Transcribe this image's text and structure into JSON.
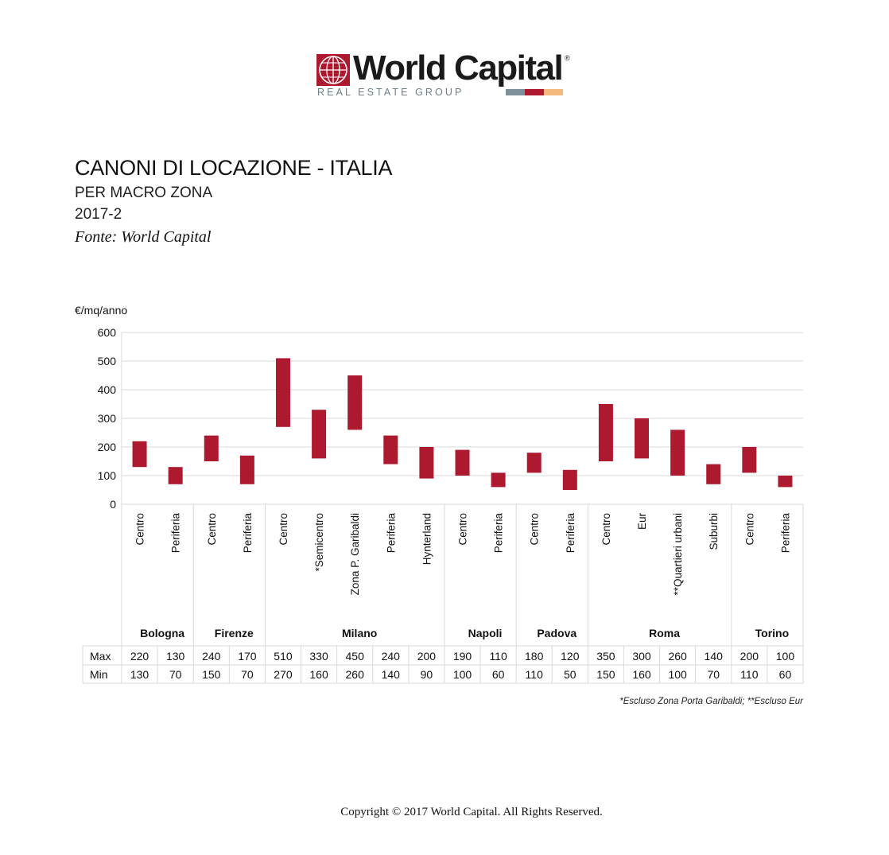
{
  "logo": {
    "name": "World Capital",
    "tagline": "REAL ESTATE GROUP",
    "registered": "®",
    "bar_colors": [
      "#7e9198",
      "#ad1a2f",
      "#f6b97d"
    ]
  },
  "header": {
    "title": "CANONI DI LOCAZIONE - ITALIA",
    "subtitle": "PER MACRO ZONA",
    "period": "2017-2",
    "source": "Fonte: World Capital"
  },
  "chart_data": {
    "type": "bar",
    "style": "floating range (min-max)",
    "ylabel": "€/mq/anno",
    "ylim": [
      0,
      600
    ],
    "yticks": [
      0,
      100,
      200,
      300,
      400,
      500,
      600
    ],
    "grid": true,
    "bar_color": "#ad1a2f",
    "groups": [
      {
        "city": "Bologna",
        "zones": [
          "Centro",
          "Periferia"
        ]
      },
      {
        "city": "Firenze",
        "zones": [
          "Centro",
          "Periferia"
        ]
      },
      {
        "city": "Milano",
        "zones": [
          "Centro",
          "*Semicentro",
          "Zona P. Garibaldi",
          "Periferia",
          "Hynterland"
        ]
      },
      {
        "city": "Napoli",
        "zones": [
          "Centro",
          "Periferia"
        ]
      },
      {
        "city": "Padova",
        "zones": [
          "Centro",
          "Periferia"
        ]
      },
      {
        "city": "Roma",
        "zones": [
          "Centro",
          "Eur",
          "**Quartieri urbani",
          "Suburbi"
        ]
      },
      {
        "city": "Torino",
        "zones": [
          "Centro",
          "Periferia"
        ]
      }
    ],
    "categories": [
      "Centro",
      "Periferia",
      "Centro",
      "Periferia",
      "Centro",
      "*Semicentro",
      "Zona P. Garibaldi",
      "Periferia",
      "Hynterland",
      "Centro",
      "Periferia",
      "Centro",
      "Periferia",
      "Centro",
      "Eur",
      "**Quartieri urbani",
      "Suburbi",
      "Centro",
      "Periferia"
    ],
    "series": [
      {
        "name": "Max",
        "values": [
          220,
          130,
          240,
          170,
          510,
          330,
          450,
          240,
          200,
          190,
          110,
          180,
          120,
          350,
          300,
          260,
          140,
          200,
          100
        ]
      },
      {
        "name": "Min",
        "values": [
          130,
          70,
          150,
          70,
          270,
          160,
          260,
          140,
          90,
          100,
          60,
          110,
          50,
          150,
          160,
          100,
          70,
          110,
          60
        ]
      }
    ]
  },
  "footnote": "*Escluso Zona Porta Garibaldi; **Escluso Eur",
  "copyright": "Copyright © 2017 World Capital. All Rights Reserved."
}
